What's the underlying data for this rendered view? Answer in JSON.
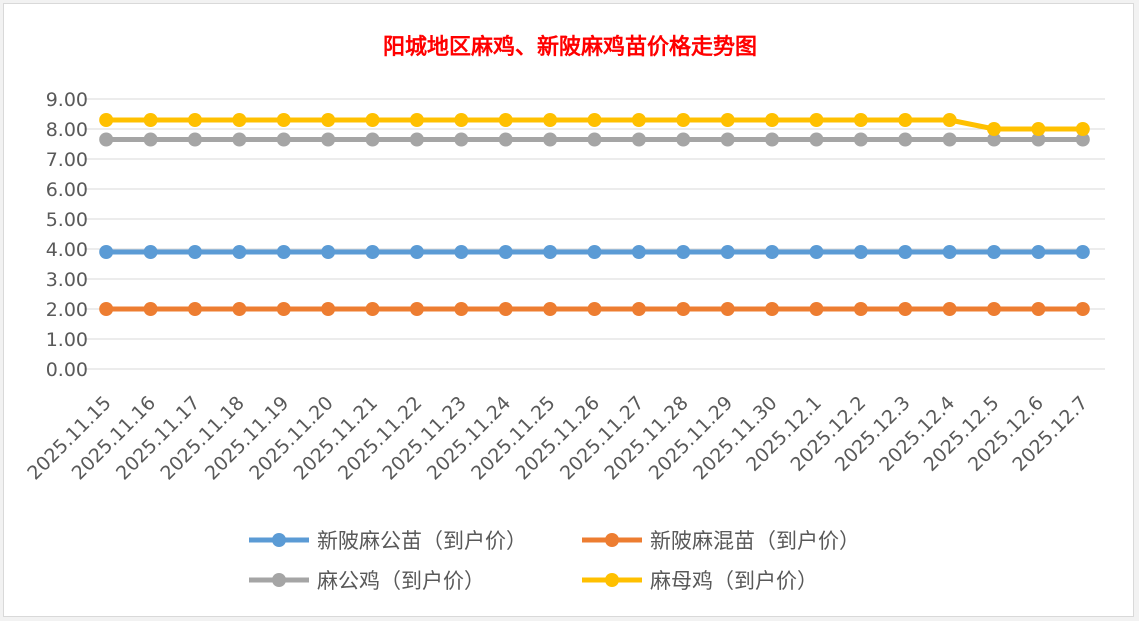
{
  "chart_data": {
    "type": "line",
    "title": "阳城地区麻鸡、新陂麻鸡苗价格走势图",
    "xlabel": "",
    "ylabel": "",
    "ylim": [
      0,
      9
    ],
    "yticks": [
      "0.00",
      "1.00",
      "2.00",
      "3.00",
      "4.00",
      "5.00",
      "6.00",
      "7.00",
      "8.00",
      "9.00"
    ],
    "grid": true,
    "legend_position": "bottom",
    "categories": [
      "2025.11.15",
      "2025.11.16",
      "2025.11.17",
      "2025.11.18",
      "2025.11.19",
      "2025.11.20",
      "2025.11.21",
      "2025.11.22",
      "2025.11.23",
      "2025.11.24",
      "2025.11.25",
      "2025.11.26",
      "2025.11.27",
      "2025.11.28",
      "2025.11.29",
      "2025.11.30",
      "2025.12.1",
      "2025.12.2",
      "2025.12.3",
      "2025.12.4",
      "2025.12.5",
      "2025.12.6",
      "2025.12.7"
    ],
    "series": [
      {
        "name": "新陂麻公苗（到户价）",
        "color": "#5b9bd5",
        "values": [
          3.9,
          3.9,
          3.9,
          3.9,
          3.9,
          3.9,
          3.9,
          3.9,
          3.9,
          3.9,
          3.9,
          3.9,
          3.9,
          3.9,
          3.9,
          3.9,
          3.9,
          3.9,
          3.9,
          3.9,
          3.9,
          3.9,
          3.9
        ]
      },
      {
        "name": "新陂麻混苗（到户价）",
        "color": "#ed7d31",
        "values": [
          2.0,
          2.0,
          2.0,
          2.0,
          2.0,
          2.0,
          2.0,
          2.0,
          2.0,
          2.0,
          2.0,
          2.0,
          2.0,
          2.0,
          2.0,
          2.0,
          2.0,
          2.0,
          2.0,
          2.0,
          2.0,
          2.0,
          2.0
        ]
      },
      {
        "name": "麻公鸡（到户价）",
        "color": "#a5a5a5",
        "values": [
          7.65,
          7.65,
          7.65,
          7.65,
          7.65,
          7.65,
          7.65,
          7.65,
          7.65,
          7.65,
          7.65,
          7.65,
          7.65,
          7.65,
          7.65,
          7.65,
          7.65,
          7.65,
          7.65,
          7.65,
          7.65,
          7.65,
          7.65
        ]
      },
      {
        "name": "麻母鸡（到户价）",
        "color": "#ffc000",
        "values": [
          8.3,
          8.3,
          8.3,
          8.3,
          8.3,
          8.3,
          8.3,
          8.3,
          8.3,
          8.3,
          8.3,
          8.3,
          8.3,
          8.3,
          8.3,
          8.3,
          8.3,
          8.3,
          8.3,
          8.3,
          8.0,
          8.0,
          8.0
        ]
      }
    ]
  }
}
